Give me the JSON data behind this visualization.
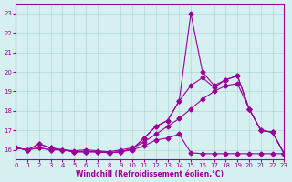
{
  "background_color": "#d6f0f0",
  "grid_color": "#b0d8d8",
  "line_color": "#990099",
  "xlabel": "Windchill (Refroidissement éolien,°C)",
  "xlim": [
    0,
    23
  ],
  "ylim": [
    15.5,
    23.5
  ],
  "yticks": [
    16,
    17,
    18,
    19,
    20,
    21,
    22,
    23
  ],
  "xticks": [
    0,
    1,
    2,
    3,
    4,
    5,
    6,
    7,
    8,
    9,
    10,
    11,
    12,
    13,
    14,
    15,
    16,
    17,
    18,
    19,
    20,
    21,
    22,
    23
  ],
  "s1": [
    16.1,
    16.0,
    16.3,
    16.1,
    16.0,
    15.9,
    15.9,
    15.9,
    15.85,
    15.9,
    16.05,
    16.6,
    17.2,
    17.5,
    18.5,
    19.3,
    19.7,
    19.2,
    19.6,
    19.8,
    18.1,
    17.0,
    16.9,
    15.8
  ],
  "s2": [
    16.1,
    16.0,
    16.3,
    16.1,
    16.0,
    15.9,
    15.9,
    15.9,
    15.85,
    15.9,
    16.05,
    16.6,
    17.2,
    17.5,
    18.5,
    23.0,
    20.0,
    19.3,
    19.6,
    19.8,
    18.1,
    17.0,
    16.9,
    15.8
  ],
  "s3": [
    16.1,
    16.0,
    16.1,
    16.0,
    16.0,
    15.95,
    16.0,
    15.95,
    15.9,
    16.0,
    16.1,
    16.4,
    16.8,
    17.2,
    17.6,
    18.1,
    18.6,
    19.0,
    19.3,
    19.4,
    18.1,
    17.0,
    16.9,
    15.8
  ],
  "s4": [
    16.1,
    16.0,
    16.1,
    16.0,
    16.0,
    15.9,
    15.9,
    15.9,
    15.85,
    15.9,
    16.0,
    16.2,
    16.5,
    16.6,
    16.8,
    15.85,
    15.8,
    15.8,
    15.8,
    15.8,
    15.8,
    15.8,
    15.8,
    15.8
  ]
}
